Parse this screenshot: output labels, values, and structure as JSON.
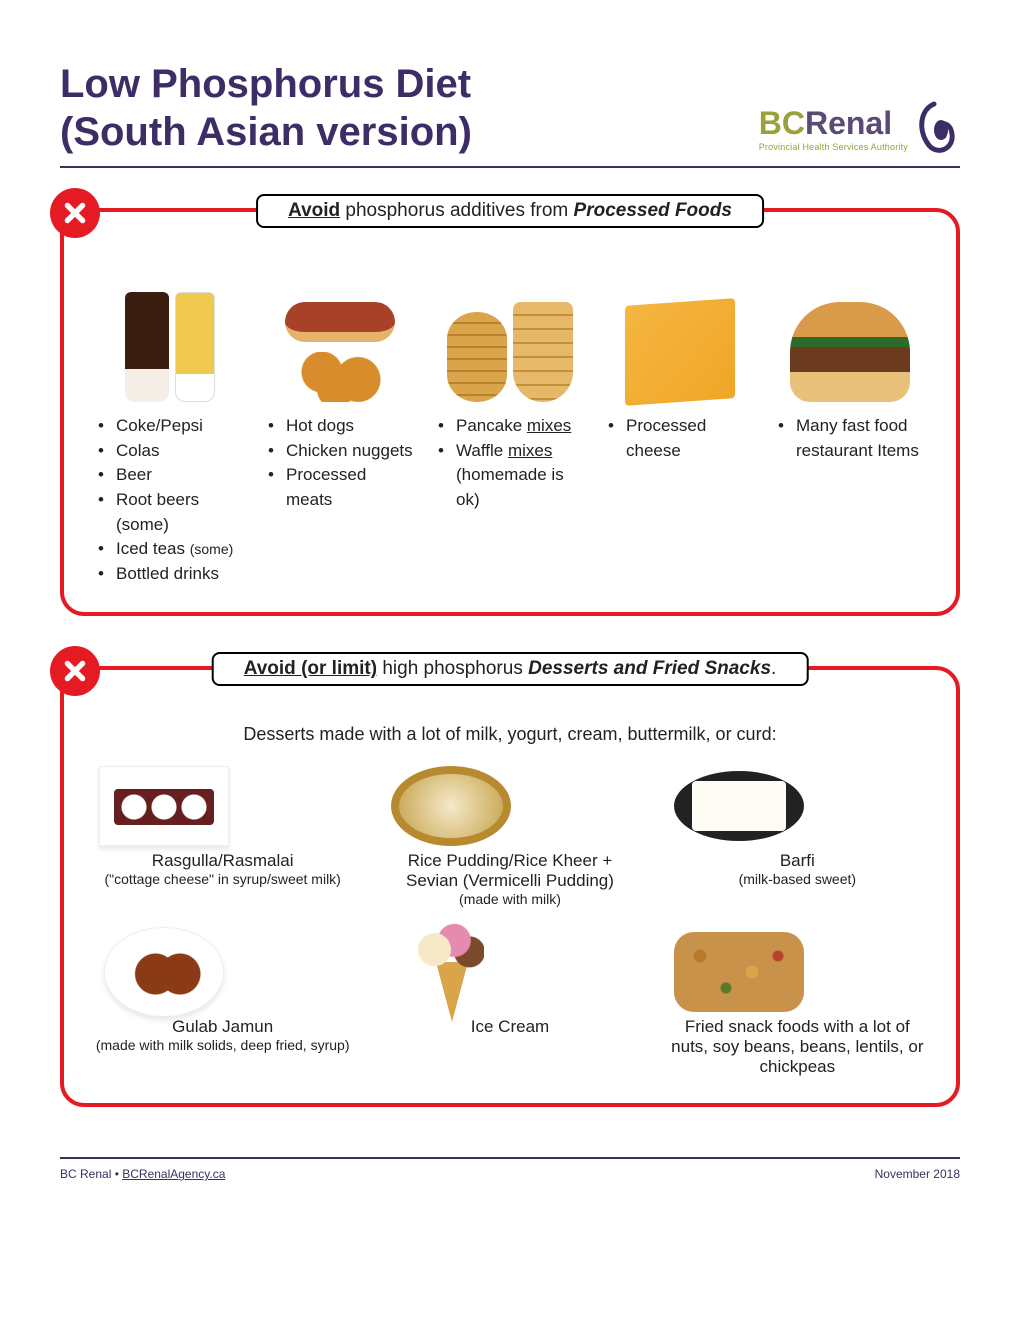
{
  "title_line1": "Low Phosphorus Diet",
  "title_line2": "(South Asian version)",
  "logo": {
    "bc": "BC",
    "renal": "Renal",
    "sub": "Provincial Health Services Authority"
  },
  "colors": {
    "accent_red": "#e51b24",
    "heading_purple": "#3d2d66",
    "logo_green": "#9aa13a",
    "logo_purple": "#5a4a75"
  },
  "card1": {
    "title_avoid": "Avoid",
    "title_rest": " phosphorus additives from ",
    "title_em": "Processed Foods",
    "columns": [
      {
        "icon": "drinks",
        "items": [
          "Coke/Pepsi",
          "Colas",
          "Beer",
          "Root beers (some)",
          "Iced teas <span class=\"small\">(some)</span>",
          "Bottled drinks"
        ]
      },
      {
        "icon": "meats",
        "items": [
          "Hot dogs",
          "Chicken nuggets",
          "Processed meats"
        ]
      },
      {
        "icon": "mixes",
        "items": [
          "Pancake <span class=\"uline\">mixes</span>",
          "Waffle <span class=\"uline\">mixes</span> (homemade is ok)"
        ]
      },
      {
        "icon": "cheese",
        "items": [
          "Processed cheese"
        ]
      },
      {
        "icon": "burger",
        "items": [
          "Many fast food restaurant Items"
        ]
      }
    ]
  },
  "card2": {
    "title_avoid": "Avoid (or limit)",
    "title_rest": " high phosphorus ",
    "title_em": "Desserts and Fried Snacks",
    "title_end": ".",
    "subtitle": "Desserts made with a lot of milk, yogurt, cream, buttermilk, or curd:",
    "cells": [
      {
        "icon": "rasgulla",
        "title": "Rasgulla/Rasmalai",
        "sub": "(\"cottage cheese\" in syrup/sweet milk)"
      },
      {
        "icon": "kheer",
        "title": "Rice Pudding/Rice Kheer + Sevian (Vermicelli Pudding)",
        "sub": "(made with milk)"
      },
      {
        "icon": "barfi",
        "title": "Barfi",
        "sub": "(milk-based sweet)"
      },
      {
        "icon": "gulab",
        "title": "Gulab Jamun",
        "sub": "(made with milk solids, deep fried, syrup)"
      },
      {
        "icon": "icecream",
        "title": "Ice Cream",
        "sub": ""
      },
      {
        "icon": "snackmix",
        "title": "Fried snack foods with a lot of nuts, soy beans, beans, lentils, or chickpeas",
        "sub": ""
      }
    ]
  },
  "footer": {
    "left_org": "BC Renal",
    "left_sep": " • ",
    "left_link": "BCRenalAgency.ca",
    "right": "November 2018"
  }
}
